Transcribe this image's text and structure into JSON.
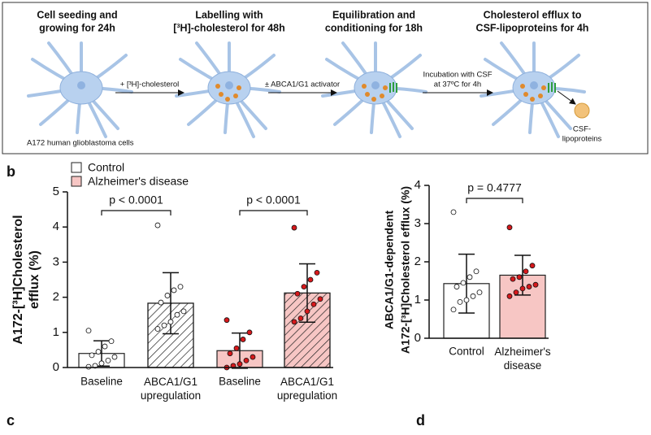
{
  "diagram": {
    "steps": [
      [
        "Cell seeding and",
        "growing for 24h"
      ],
      [
        "Labelling with",
        "[³H]-cholesterol for 48h"
      ],
      [
        "Equilibration and",
        "conditioning for 18h"
      ],
      [
        "Cholesterol efflux to",
        "CSF-lipoproteins for 4h"
      ]
    ],
    "arrows": [
      [
        "+ [³H]-cholesterol"
      ],
      [
        "± ABCA1/G1 activator"
      ],
      [
        "Incubation with CSF",
        "at 37ºC for 4h"
      ]
    ],
    "cell_label": "A172 human glioblastoma cells",
    "lipoprotein_label": [
      "CSF-",
      "lipoproteins"
    ]
  },
  "panel_labels": [
    "b",
    "c",
    "d"
  ],
  "chart_data": [
    {
      "type": "bar",
      "ylabel": [
        "A172-[³H]Cholesterol",
        "efflux (%)"
      ],
      "categories": [
        "Baseline",
        "ABCA1/G1 upregulation"
      ],
      "hatched": [
        false,
        true
      ],
      "series": [
        {
          "name": "Control",
          "color": "#ffffff",
          "point_color": "#ffffff",
          "values": [
            0.4,
            1.83
          ],
          "errors": [
            0.36,
            0.87
          ],
          "points": [
            [
              1.05,
              0.75,
              0.6,
              0.45,
              0.35,
              0.3,
              0.2,
              0.12,
              0.05,
              0.02
            ],
            [
              4.05,
              2.3,
              2.2,
              2.05,
              1.85,
              1.6,
              1.5,
              1.3,
              1.2,
              1.1
            ]
          ]
        },
        {
          "name": "Alzheimer's disease",
          "color": "#f7c6c4",
          "point_color": "#d7191c",
          "values": [
            0.48,
            2.12
          ],
          "errors": [
            0.5,
            0.83
          ],
          "points": [
            [
              1.35,
              1.0,
              0.8,
              0.55,
              0.4,
              0.3,
              0.2,
              0.1,
              0.05,
              0.0
            ],
            [
              3.98,
              2.7,
              2.5,
              2.3,
              2.1,
              1.95,
              1.8,
              1.6,
              1.4,
              1.3
            ]
          ]
        }
      ],
      "p_values": [
        "p < 0.0001",
        "p < 0.0001"
      ],
      "ylim": [
        0,
        5
      ],
      "yticks": [
        0,
        1,
        2,
        3,
        4,
        5
      ]
    },
    {
      "type": "bar",
      "ylabel": [
        "ABCA1/G1-dependent",
        "A172-[³H]Cholesterol efflux (%)"
      ],
      "categories": [
        "Control",
        "Alzheimer's disease"
      ],
      "colors": [
        "#ffffff",
        "#f7c6c4"
      ],
      "point_colors": [
        "#ffffff",
        "#d7191c"
      ],
      "values": [
        1.43,
        1.65
      ],
      "errors": [
        0.77,
        0.52
      ],
      "points": [
        [
          3.3,
          1.75,
          1.6,
          1.45,
          1.35,
          1.2,
          1.1,
          1.0,
          0.95,
          0.75
        ],
        [
          2.9,
          1.9,
          1.75,
          1.6,
          1.55,
          1.4,
          1.35,
          1.3,
          1.2,
          1.1
        ]
      ],
      "p_value": "p = 0.4777",
      "ylim": [
        0,
        4
      ],
      "yticks": [
        0,
        1,
        2,
        3,
        4
      ]
    }
  ]
}
